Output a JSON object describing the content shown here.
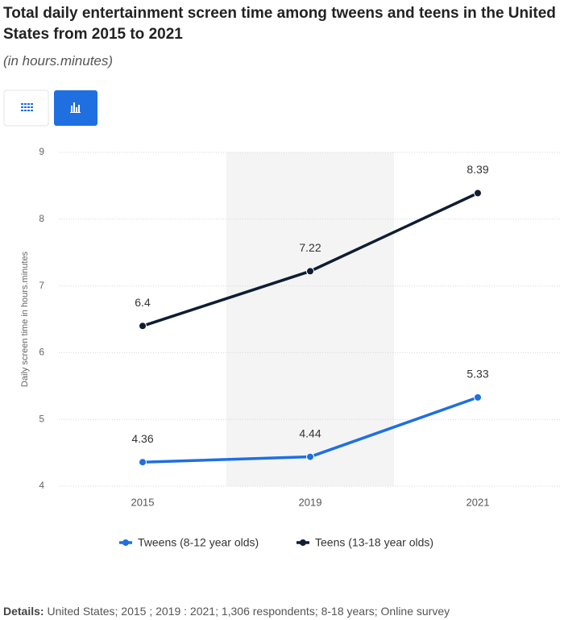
{
  "chart_data": {
    "type": "line",
    "title": "Total daily entertainment screen time among tweens and teens in the United States from 2015 to 2021",
    "subtitle": "(in hours.minutes)",
    "y_label": "Daily screen time in hours.minutes",
    "categories": [
      "2015",
      "2019",
      "2021"
    ],
    "series": [
      {
        "name": "Tweens (8-12 year olds)",
        "color": "#1f6fe0",
        "values": [
          4.36,
          4.44,
          5.33
        ]
      },
      {
        "name": "Teens (13-18 year olds)",
        "color": "#0f1d33",
        "values": [
          6.4,
          7.22,
          8.39
        ]
      }
    ],
    "ylim": [
      4,
      9
    ],
    "yticks": [
      4,
      5,
      6,
      7,
      8,
      9
    ],
    "grid": true
  },
  "details": {
    "label": "Details:",
    "text": "United States; 2015 ; 2019 : 2021; 1,306 respondents; 8-18 years; Online survey"
  }
}
